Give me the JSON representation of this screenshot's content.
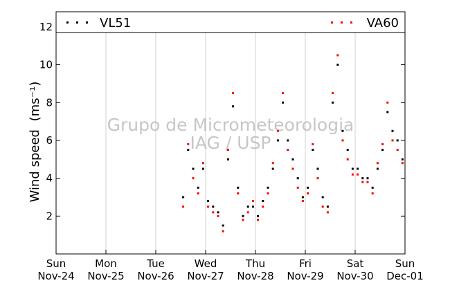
{
  "chart_data": {
    "type": "scatter",
    "title": "",
    "xlabel": "",
    "ylabel": "Wind speed",
    "ylabel_units": "(ms⁻¹)",
    "x_ticks": [
      {
        "day": "Sun",
        "date": "Nov-24"
      },
      {
        "day": "Mon",
        "date": "Nov-25"
      },
      {
        "day": "Tue",
        "date": "Nov-26"
      },
      {
        "day": "Wed",
        "date": "Nov-27"
      },
      {
        "day": "Thu",
        "date": "Nov-28"
      },
      {
        "day": "Fri",
        "date": "Nov-29"
      },
      {
        "day": "Sat",
        "date": "Nov-30"
      },
      {
        "day": "Sun",
        "date": "Dec-01"
      }
    ],
    "xlim": [
      "Nov-24",
      "Dec-01"
    ],
    "ylim": [
      0,
      12.8
    ],
    "y_ticks": [
      2,
      4,
      6,
      8,
      10,
      12
    ],
    "grid": "vertical",
    "legend_position": "top",
    "watermark": [
      "Grupo de Micrometeorologia",
      "IAG / USP"
    ],
    "series": [
      {
        "name": "VL51",
        "color": "#000000",
        "x_days": [
          2.55,
          2.65,
          2.75,
          2.85,
          2.95,
          3.05,
          3.15,
          3.25,
          3.35,
          3.45,
          3.55,
          3.65,
          3.75,
          3.85,
          3.95,
          4.05,
          4.15,
          4.25,
          4.35,
          4.45,
          4.55,
          4.65,
          4.75,
          4.85,
          4.95,
          5.05,
          5.15,
          5.25,
          5.35,
          5.45,
          5.55,
          5.65,
          5.75,
          5.85,
          5.95,
          6.05,
          6.15,
          6.25,
          6.35,
          6.45,
          6.55,
          6.65,
          6.75,
          6.85,
          6.95
        ],
        "values": [
          3.0,
          5.5,
          4.5,
          3.5,
          4.5,
          2.8,
          2.5,
          2.2,
          1.5,
          5.0,
          7.8,
          3.5,
          2.0,
          2.5,
          2.5,
          2.0,
          2.8,
          3.5,
          4.5,
          6.0,
          8.0,
          6.0,
          5.0,
          4.0,
          3.0,
          3.5,
          5.5,
          4.5,
          3.0,
          2.5,
          8.0,
          10.0,
          6.5,
          5.5,
          4.5,
          4.5,
          4.0,
          4.0,
          3.5,
          4.5,
          5.5,
          7.5,
          6.5,
          6.0,
          5.0
        ]
      },
      {
        "name": "VA60",
        "color": "#ff0000",
        "x_days": [
          2.55,
          2.65,
          2.75,
          2.85,
          2.95,
          3.05,
          3.15,
          3.25,
          3.35,
          3.45,
          3.55,
          3.65,
          3.75,
          3.85,
          3.95,
          4.05,
          4.15,
          4.25,
          4.35,
          4.45,
          4.55,
          4.65,
          4.75,
          4.85,
          4.95,
          5.05,
          5.15,
          5.25,
          5.35,
          5.45,
          5.55,
          5.65,
          5.75,
          5.85,
          5.95,
          6.05,
          6.15,
          6.25,
          6.35,
          6.45,
          6.55,
          6.65,
          6.75,
          6.85,
          6.95
        ],
        "values": [
          2.5,
          5.8,
          4.0,
          3.2,
          4.8,
          2.5,
          2.2,
          2.0,
          1.2,
          5.5,
          8.5,
          3.2,
          1.8,
          2.2,
          2.8,
          1.8,
          2.5,
          3.2,
          4.8,
          6.5,
          8.5,
          5.5,
          4.5,
          3.5,
          2.8,
          3.2,
          5.8,
          4.0,
          2.5,
          2.2,
          8.5,
          10.5,
          6.0,
          5.0,
          4.2,
          4.2,
          3.8,
          3.8,
          3.2,
          4.8,
          5.8,
          8.0,
          6.0,
          5.5,
          4.8
        ]
      }
    ]
  }
}
